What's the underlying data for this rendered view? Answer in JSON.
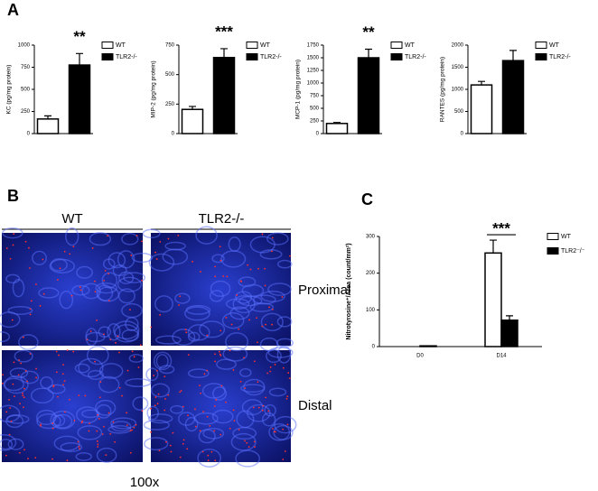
{
  "panel_labels": [
    "A",
    "B",
    "C"
  ],
  "micrographs": {
    "columns": [
      "WT",
      "TLR2-/-"
    ],
    "rows": [
      "Proximal",
      "Distal"
    ],
    "magnification": "100x"
  },
  "chart_data": [
    {
      "type": "bar",
      "ylabel": "KC (pg/mg protein)",
      "categories": [
        null
      ],
      "ylim": [
        0,
        1000
      ],
      "yticks": [
        0,
        250,
        500,
        750,
        1000
      ],
      "annotation": "**",
      "series": [
        {
          "name": "WT",
          "color": "#ffffff",
          "values": [
            165
          ],
          "errors": [
            35
          ]
        },
        {
          "name": "TLR2-/-",
          "color": "#000000",
          "values": [
            775
          ],
          "errors": [
            130
          ]
        }
      ]
    },
    {
      "type": "bar",
      "ylabel": "MIP-2 (pg/mg protein)",
      "categories": [
        null
      ],
      "ylim": [
        0,
        750
      ],
      "yticks": [
        0,
        250,
        500,
        750
      ],
      "annotation": "***",
      "series": [
        {
          "name": "WT",
          "color": "#ffffff",
          "values": [
            205
          ],
          "errors": [
            25
          ]
        },
        {
          "name": "TLR2-/-",
          "color": "#000000",
          "values": [
            645
          ],
          "errors": [
            75
          ]
        }
      ]
    },
    {
      "type": "bar",
      "ylabel": "MCP-1 (pg/mg protein)",
      "categories": [
        null
      ],
      "ylim": [
        0,
        1750
      ],
      "yticks": [
        0,
        250,
        500,
        750,
        1000,
        1250,
        1500,
        1750
      ],
      "annotation": "**",
      "series": [
        {
          "name": "WT",
          "color": "#ffffff",
          "values": [
            200
          ],
          "errors": [
            20
          ]
        },
        {
          "name": "TLR2-/-",
          "color": "#000000",
          "values": [
            1500
          ],
          "errors": [
            170
          ]
        }
      ]
    },
    {
      "type": "bar",
      "ylabel": "RANTES (pg/mg protein)",
      "categories": [
        null
      ],
      "ylim": [
        0,
        2000
      ],
      "yticks": [
        0,
        500,
        1000,
        1500,
        2000
      ],
      "series": [
        {
          "name": "WT",
          "color": "#ffffff",
          "values": [
            1100
          ],
          "errors": [
            80
          ]
        },
        {
          "name": "TLR2-/-",
          "color": "#000000",
          "values": [
            1650
          ],
          "errors": [
            230
          ]
        }
      ]
    },
    {
      "type": "bar",
      "ylabel": "Nitrotyrosine⁺/Area (count/mm²)",
      "categories": [
        "D0",
        "D14"
      ],
      "ylim": [
        0,
        300
      ],
      "yticks": [
        0,
        100,
        200,
        300
      ],
      "annotation": "***",
      "series": [
        {
          "name": "WT",
          "color": "#ffffff",
          "values": [
            0,
            255
          ],
          "errors": [
            0,
            35
          ]
        },
        {
          "name": "TLR2⁻/⁻",
          "color": "#000000",
          "values": [
            2,
            72
          ],
          "errors": [
            0,
            12
          ]
        }
      ]
    }
  ]
}
